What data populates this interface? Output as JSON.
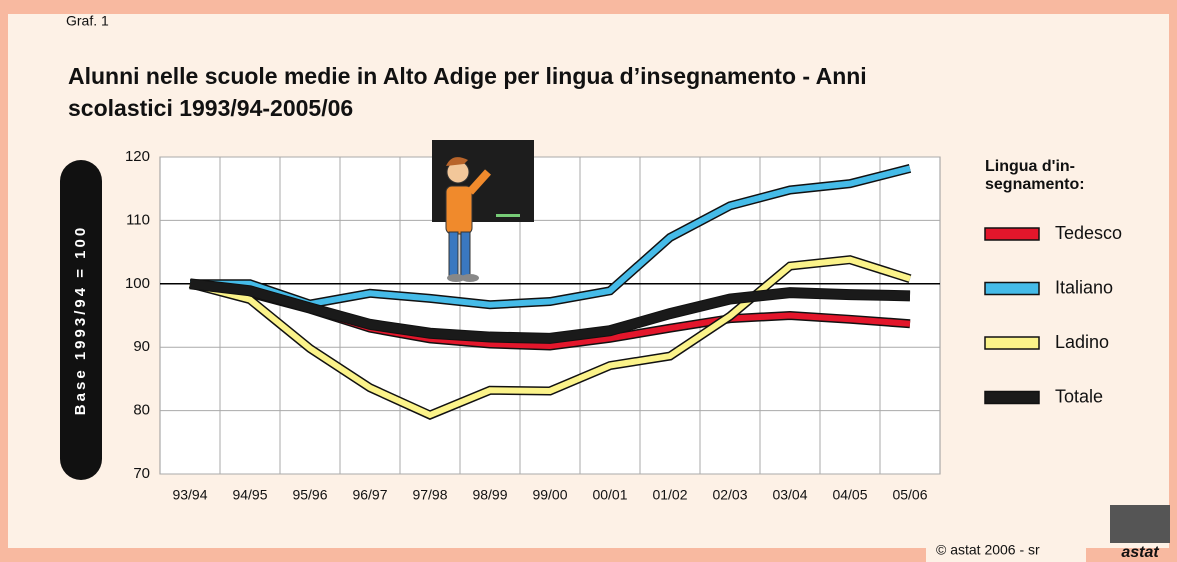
{
  "tab": "Graf. 1",
  "chart_data": {
    "type": "line",
    "title": [
      "Alunni nelle scuole medie in Alto Adige per lingua d’insegnamento - Anni",
      "scolastici 1993/94-2005/06"
    ],
    "ylabel": "Base 1993/94 = 100",
    "categories": [
      "93/94",
      "94/95",
      "95/96",
      "96/97",
      "97/98",
      "98/99",
      "99/00",
      "00/01",
      "01/02",
      "02/03",
      "03/04",
      "04/05",
      "05/06"
    ],
    "ylim": [
      70,
      120
    ],
    "yticks": [
      70,
      80,
      90,
      100,
      110,
      120
    ],
    "grid": true,
    "baseline": 100,
    "legend_title": [
      "Lingua d'in-",
      "segnamento:"
    ],
    "legend": "right",
    "series": [
      {
        "name": "Tedesco",
        "color": "#e3162b",
        "values": [
          100,
          98.5,
          96,
          93,
          91.3,
          90.5,
          90.2,
          91.4,
          93,
          94.5,
          95,
          94.4,
          93.7
        ]
      },
      {
        "name": "Italiano",
        "color": "#45bbe8",
        "values": [
          100,
          100,
          96.8,
          98.5,
          97.7,
          96.7,
          97.2,
          98.9,
          107.3,
          112.3,
          114.8,
          115.8,
          118.2
        ]
      },
      {
        "name": "Ladino",
        "color": "#fbf38a",
        "values": [
          100,
          97.5,
          89.8,
          83.6,
          79.3,
          83.2,
          83.1,
          87.1,
          88.6,
          94.9,
          102.8,
          103.8,
          100.8
        ]
      },
      {
        "name": "Totale",
        "color": "#1a1a1a",
        "values": [
          100,
          98.9,
          96.2,
          93.6,
          92.2,
          91.6,
          91.4,
          92.6,
          95.3,
          97.6,
          98.6,
          98.3,
          98.1
        ]
      }
    ]
  },
  "footer": {
    "copyright": "© astat 2006 - sr",
    "logo": "astat"
  }
}
